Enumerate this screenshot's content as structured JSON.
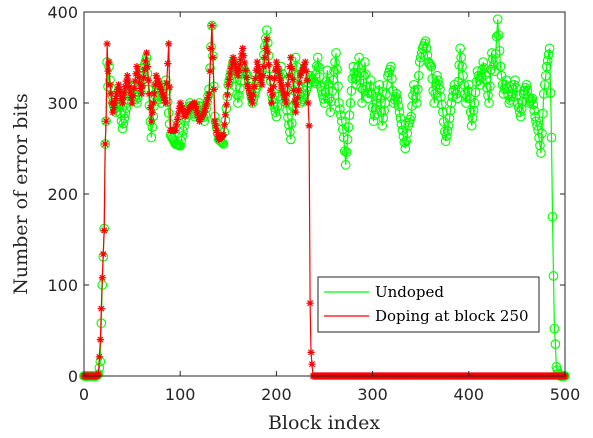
{
  "chart_data": {
    "type": "line",
    "xlabel": "Block index",
    "ylabel": "Number of error bits",
    "xlim": [
      0,
      500
    ],
    "ylim": [
      0,
      400
    ],
    "xticks": [
      0,
      100,
      200,
      300,
      400,
      500
    ],
    "yticks": [
      0,
      100,
      200,
      300,
      400
    ],
    "grid": false,
    "legend_position": "bottom-right",
    "series": [
      {
        "name": "Undoped",
        "color": "#00ff00",
        "marker": "circle",
        "keypoints": [
          [
            0,
            0
          ],
          [
            13,
            0
          ],
          [
            15,
            2
          ],
          [
            17,
            16
          ],
          [
            19,
            100
          ],
          [
            21,
            162
          ],
          [
            22,
            255
          ],
          [
            23,
            280
          ],
          [
            24,
            345
          ],
          [
            25,
            318
          ],
          [
            26,
            340
          ],
          [
            27,
            325
          ],
          [
            30,
            300
          ],
          [
            33,
            290
          ],
          [
            36,
            305
          ],
          [
            40,
            272
          ],
          [
            45,
            300
          ],
          [
            50,
            318
          ],
          [
            55,
            300
          ],
          [
            60,
            330
          ],
          [
            65,
            350
          ],
          [
            70,
            262
          ],
          [
            75,
            320
          ],
          [
            80,
            300
          ],
          [
            85,
            325
          ],
          [
            90,
            265
          ],
          [
            95,
            255
          ],
          [
            100,
            253
          ],
          [
            105,
            280
          ],
          [
            110,
            300
          ],
          [
            115,
            285
          ],
          [
            120,
            300
          ],
          [
            125,
            280
          ],
          [
            130,
            315
          ],
          [
            133,
            385
          ],
          [
            136,
            285
          ],
          [
            140,
            260
          ],
          [
            145,
            255
          ],
          [
            150,
            320
          ],
          [
            155,
            345
          ],
          [
            160,
            300
          ],
          [
            165,
            340
          ],
          [
            170,
            330
          ],
          [
            175,
            300
          ],
          [
            180,
            320
          ],
          [
            185,
            335
          ],
          [
            190,
            380
          ],
          [
            195,
            310
          ],
          [
            200,
            285
          ],
          [
            205,
            340
          ],
          [
            210,
            300
          ],
          [
            215,
            260
          ],
          [
            220,
            350
          ],
          [
            225,
            300
          ],
          [
            230,
            310
          ],
          [
            235,
            330
          ],
          [
            240,
            322
          ],
          [
            243,
            350
          ],
          [
            246,
            318
          ],
          [
            250,
            300
          ],
          [
            253,
            336
          ],
          [
            256,
            290
          ],
          [
            259,
            325
          ],
          [
            262,
            355
          ],
          [
            265,
            300
          ],
          [
            268,
            280
          ],
          [
            270,
            262
          ],
          [
            272,
            232
          ],
          [
            274,
            260
          ],
          [
            277,
            300
          ],
          [
            280,
            340
          ],
          [
            283,
            320
          ],
          [
            286,
            350
          ],
          [
            289,
            300
          ],
          [
            292,
            345
          ],
          [
            295,
            305
          ],
          [
            298,
            325
          ],
          [
            301,
            280
          ],
          [
            304,
            300
          ],
          [
            307,
            320
          ],
          [
            310,
            275
          ],
          [
            313,
            300
          ],
          [
            316,
            330
          ],
          [
            319,
            340
          ],
          [
            322,
            300
          ],
          [
            325,
            310
          ],
          [
            328,
            290
          ],
          [
            331,
            270
          ],
          [
            334,
            250
          ],
          [
            337,
            275
          ],
          [
            340,
            285
          ],
          [
            343,
            320
          ],
          [
            346,
            300
          ],
          [
            349,
            345
          ],
          [
            352,
            360
          ],
          [
            355,
            368
          ],
          [
            358,
            345
          ],
          [
            361,
            340
          ],
          [
            364,
            300
          ],
          [
            367,
            330
          ],
          [
            370,
            315
          ],
          [
            373,
            290
          ],
          [
            376,
            258
          ],
          [
            379,
            275
          ],
          [
            382,
            300
          ],
          [
            385,
            320
          ],
          [
            388,
            305
          ],
          [
            391,
            360
          ],
          [
            394,
            330
          ],
          [
            397,
            300
          ],
          [
            400,
            320
          ],
          [
            403,
            275
          ],
          [
            406,
            300
          ],
          [
            409,
            335
          ],
          [
            412,
            320
          ],
          [
            415,
            345
          ],
          [
            418,
            325
          ],
          [
            421,
            300
          ],
          [
            424,
            355
          ],
          [
            427,
            335
          ],
          [
            430,
            392
          ],
          [
            433,
            340
          ],
          [
            436,
            310
          ],
          [
            439,
            325
          ],
          [
            442,
            300
          ],
          [
            445,
            310
          ],
          [
            448,
            325
          ],
          [
            451,
            300
          ],
          [
            454,
            285
          ],
          [
            457,
            310
          ],
          [
            460,
            320
          ],
          [
            463,
            300
          ],
          [
            466,
            305
          ],
          [
            469,
            285
          ],
          [
            472,
            270
          ],
          [
            475,
            245
          ],
          [
            478,
            310
          ],
          [
            481,
            340
          ],
          [
            484,
            360
          ],
          [
            486,
            262
          ],
          [
            487,
            175
          ],
          [
            488,
            110
          ],
          [
            489,
            52
          ],
          [
            490,
            35
          ],
          [
            491,
            10
          ],
          [
            493,
            3
          ],
          [
            495,
            0
          ],
          [
            500,
            0
          ]
        ]
      },
      {
        "name": "Doping at block 250",
        "color": "#ff0000",
        "marker": "asterisk",
        "keypoints": [
          [
            0,
            0
          ],
          [
            13,
            0
          ],
          [
            15,
            2
          ],
          [
            17,
            40
          ],
          [
            19,
            108
          ],
          [
            21,
            160
          ],
          [
            22,
            255
          ],
          [
            23,
            280
          ],
          [
            24,
            365
          ],
          [
            25,
            335
          ],
          [
            26,
            345
          ],
          [
            27,
            320
          ],
          [
            30,
            290
          ],
          [
            33,
            305
          ],
          [
            36,
            320
          ],
          [
            40,
            300
          ],
          [
            45,
            330
          ],
          [
            50,
            300
          ],
          [
            55,
            340
          ],
          [
            60,
            310
          ],
          [
            65,
            355
          ],
          [
            70,
            280
          ],
          [
            75,
            330
          ],
          [
            80,
            315
          ],
          [
            85,
            300
          ],
          [
            88,
            365
          ],
          [
            90,
            270
          ],
          [
            95,
            270
          ],
          [
            100,
            300
          ],
          [
            105,
            285
          ],
          [
            110,
            295
          ],
          [
            115,
            300
          ],
          [
            120,
            280
          ],
          [
            125,
            290
          ],
          [
            130,
            310
          ],
          [
            133,
            385
          ],
          [
            136,
            280
          ],
          [
            140,
            260
          ],
          [
            145,
            265
          ],
          [
            150,
            320
          ],
          [
            155,
            350
          ],
          [
            160,
            330
          ],
          [
            165,
            360
          ],
          [
            170,
            320
          ],
          [
            175,
            300
          ],
          [
            180,
            345
          ],
          [
            185,
            320
          ],
          [
            190,
            370
          ],
          [
            195,
            300
          ],
          [
            200,
            345
          ],
          [
            205,
            320
          ],
          [
            210,
            300
          ],
          [
            215,
            350
          ],
          [
            220,
            290
          ],
          [
            225,
            330
          ],
          [
            230,
            345
          ],
          [
            232,
            325
          ],
          [
            234,
            275
          ],
          [
            235,
            80
          ],
          [
            236,
            26
          ],
          [
            238,
            0
          ],
          [
            500,
            0
          ]
        ]
      }
    ]
  }
}
